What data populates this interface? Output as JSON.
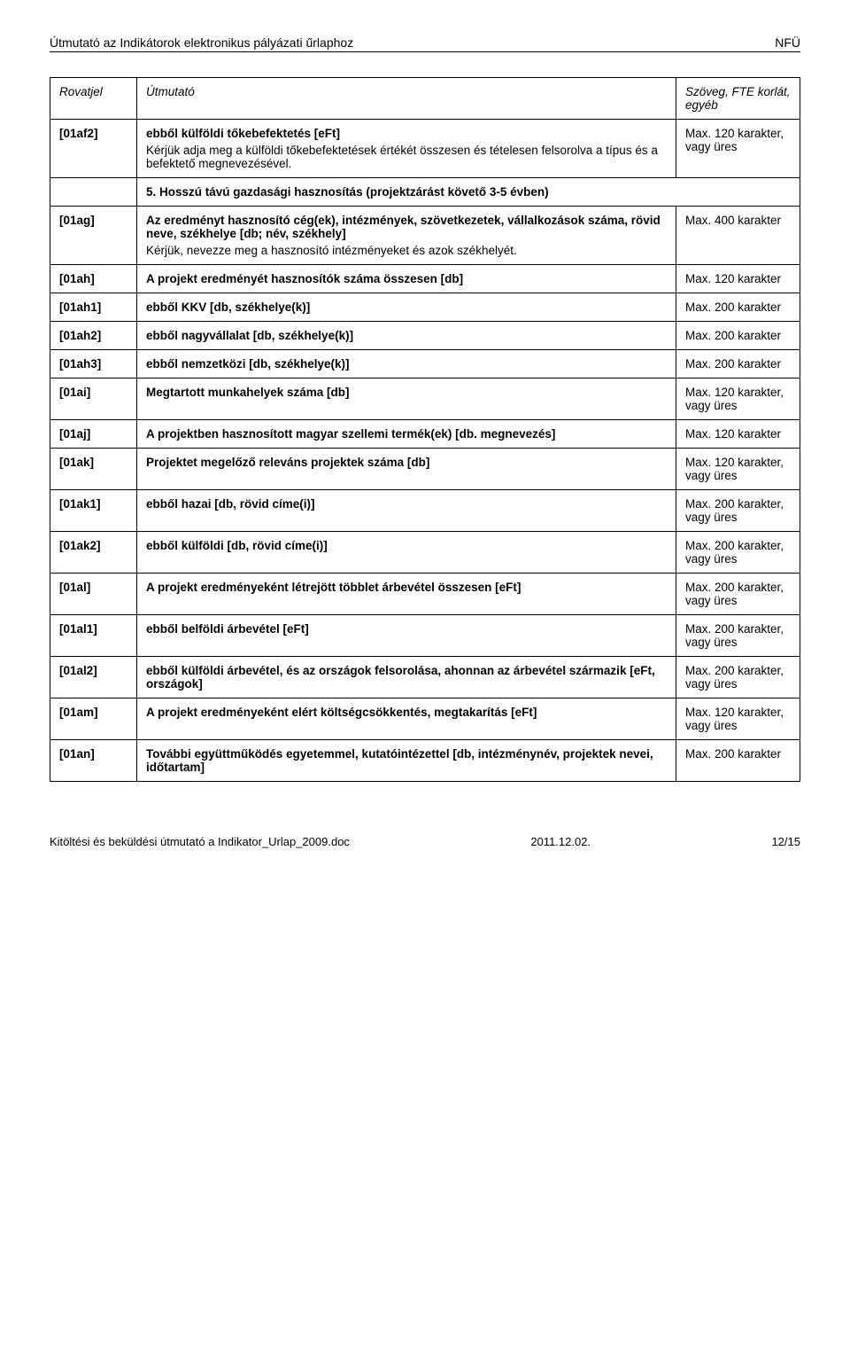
{
  "header": {
    "left": "Útmutató az Indikátorok elektronikus pályázati űrlaphoz",
    "right": "NFÜ"
  },
  "table": {
    "head": {
      "c1": "Rovatjel",
      "c2": "Útmutató",
      "c3": "Szöveg, FTE korlát, egyéb"
    },
    "rows": [
      {
        "id": "[01af2]",
        "title": "ebből külföldi tőkebefektetés [eFt]",
        "indent": true,
        "desc": "Kérjük adja meg a külföldi tőkebefektetések értékét összesen és tételesen felsorolva a típus és a befektető megnevezésével.",
        "limit": "Max. 120 karakter, vagy üres"
      },
      {
        "section": "5. Hosszú távú gazdasági hasznosítás (projektzárást követő 3-5 évben)"
      },
      {
        "id": "[01ag]",
        "title": "Az eredményt hasznosító cég(ek), intézmények, szövetkezetek, vállalkozások száma, rövid neve, székhelye [db; név, székhely]",
        "desc": "Kérjük, nevezze meg a hasznosító intézményeket és azok székhelyét.",
        "limit": "Max. 400 karakter"
      },
      {
        "id": "[01ah]",
        "title": "A projekt eredményét hasznosítók száma összesen [db]",
        "limit": "Max. 120 karakter"
      },
      {
        "id": "[01ah1]",
        "title": "ebből KKV [db, székhelye(k)]",
        "indent": true,
        "limit": "Max. 200 karakter"
      },
      {
        "id": "[01ah2]",
        "title": "ebből nagyvállalat [db, székhelye(k)]",
        "indent": true,
        "limit": "Max. 200 karakter"
      },
      {
        "id": "[01ah3]",
        "title": "ebből nemzetközi [db, székhelye(k)]",
        "indent": true,
        "limit": "Max. 200 karakter"
      },
      {
        "id": "[01ai]",
        "title": "Megtartott munkahelyek száma [db]",
        "limit": "Max. 120 karakter, vagy üres"
      },
      {
        "id": "[01aj]",
        "title": "A projektben hasznosított magyar szellemi termék(ek) [db. megnevezés]",
        "limit": "Max. 120 karakter"
      },
      {
        "id": "[01ak]",
        "title": "Projektet megelőző releváns projektek száma [db]",
        "limit": "Max. 120 karakter, vagy üres"
      },
      {
        "id": "[01ak1]",
        "title": "ebből hazai [db, rövid címe(i)]",
        "indent": true,
        "limit": "Max. 200 karakter, vagy üres"
      },
      {
        "id": "[01ak2]",
        "title": "ebből külföldi [db, rövid címe(i)]",
        "indent": true,
        "limit": "Max. 200 karakter, vagy üres"
      },
      {
        "id": "[01al]",
        "title": "A projekt eredményeként létrejött többlet árbevétel összesen [eFt]",
        "limit": "Max. 200 karakter, vagy üres"
      },
      {
        "id": "[01al1]",
        "title": "ebből belföldi árbevétel [eFt]",
        "indent": true,
        "limit": "Max. 200 karakter, vagy üres"
      },
      {
        "id": "[01al2]",
        "title": "ebből külföldi árbevétel, és az országok felsorolása, ahonnan az árbevétel származik [eFt, országok]",
        "indent": true,
        "limit": "Max. 200 karakter, vagy üres"
      },
      {
        "id": "[01am]",
        "title": "A projekt eredményeként elért költségcsökkentés, megtakarítás [eFt]",
        "limit": "Max. 120 karakter, vagy üres"
      },
      {
        "id": "[01an]",
        "title": "További együttműködés egyetemmel, kutatóintézettel [db, intézménynév, projektek nevei, időtartam]",
        "limit": "Max. 200 karakter"
      }
    ]
  },
  "footer": {
    "left": "Kitöltési és beküldési útmutató a Indikator_Urlap_2009.doc",
    "center": "2011.12.02.",
    "right": "12/15"
  }
}
